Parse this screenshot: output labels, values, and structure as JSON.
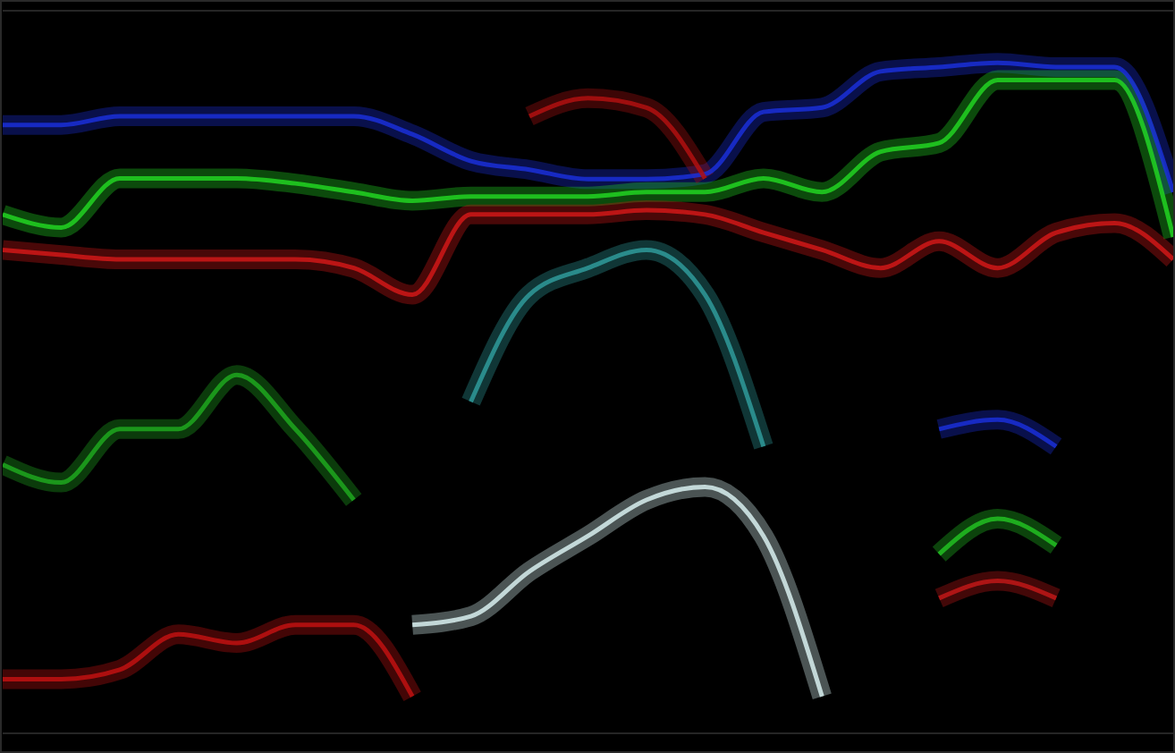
{
  "chart_data": {
    "type": "line",
    "x": [
      0,
      5,
      10,
      15,
      20,
      25,
      30,
      35,
      40,
      45,
      50,
      55,
      60,
      65,
      70,
      75,
      80,
      85,
      90,
      95,
      100
    ],
    "xlim": [
      0,
      100
    ],
    "ylim": [
      0,
      1000
    ],
    "yticks": [
      0,
      100,
      200,
      300,
      400,
      500,
      600,
      700,
      800,
      900,
      1000
    ],
    "grid": true,
    "tick_labels": false,
    "series": [
      {
        "color": "#1a2fd8",
        "values": [
          842,
          842,
          854,
          854,
          854,
          854,
          854,
          829,
          792,
          780,
          767,
          767,
          774,
          860,
          866,
          916,
          922,
          928,
          922,
          922,
          749
        ]
      },
      {
        "color": "#22d422",
        "values": [
          718,
          700,
          768,
          768,
          768,
          761,
          749,
          737,
          743,
          743,
          743,
          749,
          749,
          768,
          749,
          805,
          817,
          904,
          904,
          904,
          687
        ]
      },
      {
        "color": "#d01818",
        "values": [
          669,
          662,
          656,
          656,
          656,
          656,
          644,
          607,
          718,
          718,
          718,
          724,
          718,
          693,
          669,
          644,
          681,
          644,
          693,
          706,
          656
        ]
      },
      {
        "color": "#b01010",
        "values": [
          null,
          null,
          null,
          null,
          null,
          null,
          null,
          null,
          null,
          854,
          879,
          866,
          768,
          null,
          null,
          null,
          null,
          null,
          null,
          null,
          null
        ]
      },
      {
        "color": "#2f9a9a",
        "values": [
          null,
          null,
          null,
          null,
          null,
          null,
          null,
          null,
          459,
          607,
          644,
          669,
          607,
          397,
          null,
          null,
          null,
          null,
          null,
          null,
          null
        ]
      },
      {
        "color": "#d8f0f0",
        "values": [
          null,
          null,
          null,
          null,
          null,
          null,
          null,
          150,
          162,
          224,
          273,
          323,
          341,
          273,
          51,
          null,
          null,
          null,
          null,
          null,
          null
        ]
      },
      {
        "color": "#1fa81f",
        "values": [
          372,
          347,
          421,
          421,
          496,
          421,
          323,
          null,
          null,
          null,
          null,
          null,
          null,
          null,
          null,
          null,
          null,
          null,
          null,
          null,
          null
        ]
      },
      {
        "color": "#c01212",
        "values": [
          75,
          75,
          88,
          137,
          125,
          150,
          150,
          51,
          null,
          null,
          null,
          null,
          null,
          null,
          null,
          null,
          null,
          null,
          null,
          null,
          null
        ]
      },
      {
        "color": "#1a2fd8",
        "values": [
          null,
          null,
          null,
          null,
          null,
          null,
          null,
          null,
          null,
          null,
          null,
          null,
          null,
          null,
          null,
          null,
          421,
          434,
          397,
          null,
          null
        ]
      },
      {
        "color": "#22c022",
        "values": [
          null,
          null,
          null,
          null,
          null,
          null,
          null,
          null,
          null,
          null,
          null,
          null,
          null,
          null,
          null,
          null,
          248,
          297,
          260,
          null,
          null
        ]
      },
      {
        "color": "#c01818",
        "values": [
          null,
          null,
          null,
          null,
          null,
          null,
          null,
          null,
          null,
          null,
          null,
          null,
          null,
          null,
          null,
          null,
          187,
          211,
          187,
          null,
          null
        ]
      }
    ]
  }
}
